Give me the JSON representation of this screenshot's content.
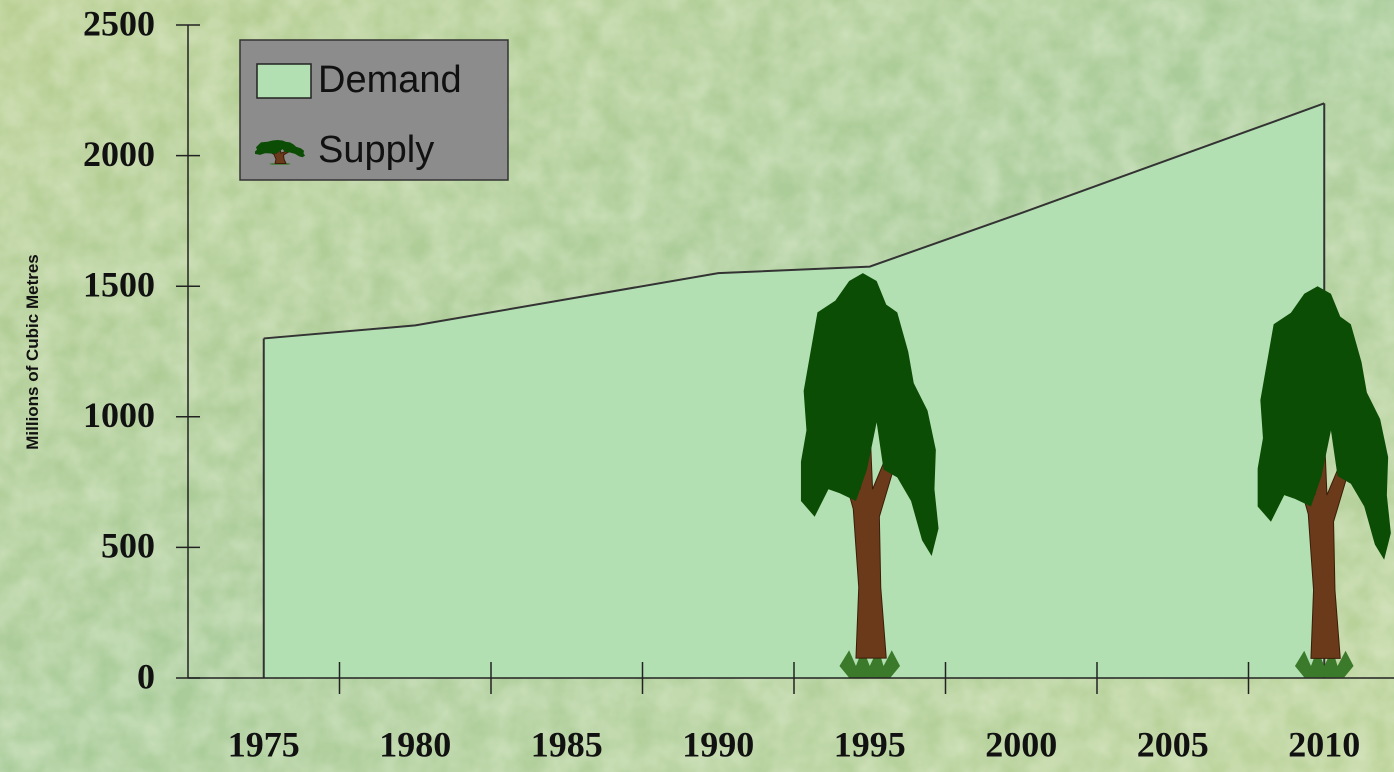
{
  "chart_data": {
    "type": "area",
    "y_label": "Millions of Cubic Metres",
    "categories": [
      "1975",
      "1980",
      "1985",
      "1990",
      "1995",
      "2000",
      "2005",
      "2010"
    ],
    "series": [
      {
        "name": "Demand",
        "color": "#b3e0b3",
        "values": [
          1300,
          1350,
          1450,
          1550,
          1575,
          1780,
          1990,
          2200
        ]
      },
      {
        "name": "Supply",
        "color": "#0b4d05",
        "values": [
          null,
          null,
          null,
          null,
          1550,
          null,
          null,
          1500
        ]
      }
    ],
    "ylim": [
      0,
      2500
    ],
    "yticks": [
      0,
      500,
      1000,
      1500,
      2000,
      2500
    ],
    "legend": "top-left"
  }
}
